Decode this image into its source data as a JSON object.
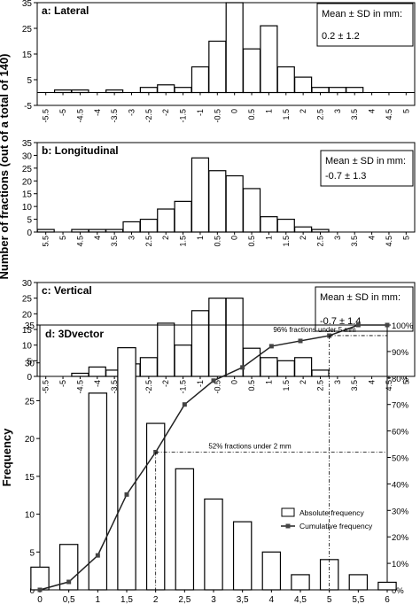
{
  "figure": {
    "shared_ylabel": "Number of fractions (out of a total of 140)"
  },
  "chart_data": [
    {
      "type": "bar",
      "title": "a: Lateral",
      "stat_box": {
        "heading": "Mean ± SD in mm:",
        "value": "0.2 ± 1.2"
      },
      "ylim": [
        -5,
        35
      ],
      "yticks": [
        -5,
        5,
        15,
        25,
        35
      ],
      "x_tick_labels": [
        "-5.5",
        "-5",
        "-4.5",
        "-4",
        "-3.5",
        "-3",
        "-2.5",
        "-2",
        "-1.5",
        "-1",
        "-0.5",
        "0",
        "0.5",
        "1",
        "1.5",
        "2",
        "2.5",
        "3",
        "3.5",
        "4",
        "4.5",
        "5"
      ],
      "bin_width": 0.5,
      "bars": [
        {
          "x": -5.0,
          "value": 1
        },
        {
          "x": -4.5,
          "value": 1
        },
        {
          "x": -3.5,
          "value": 1
        },
        {
          "x": -2.5,
          "value": 2
        },
        {
          "x": -2.0,
          "value": 3
        },
        {
          "x": -1.5,
          "value": 2
        },
        {
          "x": -1.0,
          "value": 10
        },
        {
          "x": -0.5,
          "value": 20
        },
        {
          "x": 0.0,
          "value": 35
        },
        {
          "x": 0.5,
          "value": 17
        },
        {
          "x": 1.0,
          "value": 26
        },
        {
          "x": 1.5,
          "value": 10
        },
        {
          "x": 2.0,
          "value": 6
        },
        {
          "x": 2.5,
          "value": 2
        },
        {
          "x": 3.0,
          "value": 2
        },
        {
          "x": 3.5,
          "value": 2
        }
      ]
    },
    {
      "type": "bar",
      "title": "b: Longitudinal",
      "stat_box": {
        "heading": "Mean ± SD in mm:",
        "value": "-0.7 ± 1.3"
      },
      "ylim": [
        0,
        35
      ],
      "yticks": [
        0,
        5,
        10,
        15,
        20,
        25,
        30,
        35
      ],
      "x_tick_labels": [
        "5.5",
        "5",
        "4.5",
        "4",
        "3.5",
        "3",
        "2.5",
        "2",
        "1.5",
        "1",
        "0.5",
        "0",
        "0.5",
        "1",
        "1.5",
        "2",
        "2.5",
        "3",
        "3.5",
        "4",
        "4.5",
        "5"
      ],
      "bin_width": 0.5,
      "bars": [
        {
          "x": -5.5,
          "value": 1
        },
        {
          "x": -4.5,
          "value": 1
        },
        {
          "x": -4.0,
          "value": 1
        },
        {
          "x": -3.5,
          "value": 1
        },
        {
          "x": -3.0,
          "value": 4
        },
        {
          "x": -2.5,
          "value": 5
        },
        {
          "x": -2.0,
          "value": 9
        },
        {
          "x": -1.5,
          "value": 12
        },
        {
          "x": -1.0,
          "value": 29
        },
        {
          "x": -0.5,
          "value": 24
        },
        {
          "x": 0.0,
          "value": 22
        },
        {
          "x": 0.5,
          "value": 17
        },
        {
          "x": 1.0,
          "value": 6
        },
        {
          "x": 1.5,
          "value": 5
        },
        {
          "x": 2.0,
          "value": 2
        },
        {
          "x": 2.5,
          "value": 1
        }
      ]
    },
    {
      "type": "bar",
      "title": "c: Vertical",
      "stat_box": {
        "heading": "Mean ± SD in mm:",
        "value": "-0.7 ± 1.4"
      },
      "ylim": [
        0,
        30
      ],
      "yticks": [
        0,
        5,
        10,
        15,
        20,
        25,
        30
      ],
      "x_tick_labels": [
        "-5.5",
        "-5",
        "-4.5",
        "-4",
        "-3.5",
        "-3",
        "-2.5",
        "-2",
        "-1.5",
        "-1",
        "-0.5",
        "0",
        "0.5",
        "1",
        "1.5",
        "2",
        "2.5",
        "3",
        "3.5",
        "4",
        "4.5",
        "5"
      ],
      "bin_width": 0.5,
      "bars": [
        {
          "x": -4.5,
          "value": 1
        },
        {
          "x": -4.0,
          "value": 3
        },
        {
          "x": -3.5,
          "value": 2
        },
        {
          "x": -3.0,
          "value": 4
        },
        {
          "x": -2.5,
          "value": 6
        },
        {
          "x": -2.0,
          "value": 17
        },
        {
          "x": -1.5,
          "value": 10
        },
        {
          "x": -1.0,
          "value": 21
        },
        {
          "x": -0.5,
          "value": 25
        },
        {
          "x": 0.0,
          "value": 25
        },
        {
          "x": 0.5,
          "value": 9
        },
        {
          "x": 1.0,
          "value": 6
        },
        {
          "x": 1.5,
          "value": 5
        },
        {
          "x": 2.0,
          "value": 6
        },
        {
          "x": 2.5,
          "value": 2
        }
      ]
    },
    {
      "type": "bar+line",
      "title": "d: 3Dvector",
      "ylabel": "Frequency",
      "ylim": [
        0,
        35
      ],
      "yticks": [
        0,
        5,
        10,
        15,
        20,
        25,
        30,
        35
      ],
      "y2lim": [
        0,
        100
      ],
      "y2ticks": [
        "0%",
        "10%",
        "20%",
        "30%",
        "40%",
        "50%",
        "60%",
        "70%",
        "80%",
        "90%",
        "100%"
      ],
      "x_tick_labels": [
        "0",
        "0,5",
        "1",
        "1,5",
        "2",
        "2,5",
        "3",
        "3,5",
        "4",
        "4,5",
        "5",
        "5,5",
        "6"
      ],
      "xlim": [
        0,
        6
      ],
      "bin_width": 0.5,
      "bars": [
        {
          "x": 0.0,
          "value": 3
        },
        {
          "x": 0.5,
          "value": 6
        },
        {
          "x": 1.0,
          "value": 26
        },
        {
          "x": 1.5,
          "value": 32
        },
        {
          "x": 2.0,
          "value": 22
        },
        {
          "x": 2.5,
          "value": 16
        },
        {
          "x": 3.0,
          "value": 12
        },
        {
          "x": 3.5,
          "value": 9
        },
        {
          "x": 4.0,
          "value": 5
        },
        {
          "x": 4.5,
          "value": 2
        },
        {
          "x": 5.0,
          "value": 4
        },
        {
          "x": 5.5,
          "value": 2
        },
        {
          "x": 6.0,
          "value": 1
        }
      ],
      "cumulative": [
        {
          "x": 0.0,
          "value": 0
        },
        {
          "x": 0.5,
          "value": 3
        },
        {
          "x": 1.0,
          "value": 13
        },
        {
          "x": 1.5,
          "value": 36
        },
        {
          "x": 2.0,
          "value": 52
        },
        {
          "x": 2.5,
          "value": 70
        },
        {
          "x": 3.0,
          "value": 79
        },
        {
          "x": 3.5,
          "value": 84
        },
        {
          "x": 4.0,
          "value": 92
        },
        {
          "x": 4.5,
          "value": 94
        },
        {
          "x": 5.0,
          "value": 96
        },
        {
          "x": 5.5,
          "value": 100
        },
        {
          "x": 6.0,
          "value": 100
        }
      ],
      "legend": {
        "bars": "Absolute frequency",
        "line": "Cumulative frequency",
        "placement": "right"
      },
      "annotations": [
        {
          "text": "96% fractions under 5 mm",
          "x": 5.0,
          "y2": 96
        },
        {
          "text": "52% fractions under 2 mm",
          "x": 2.0,
          "y2": 52
        }
      ]
    }
  ]
}
